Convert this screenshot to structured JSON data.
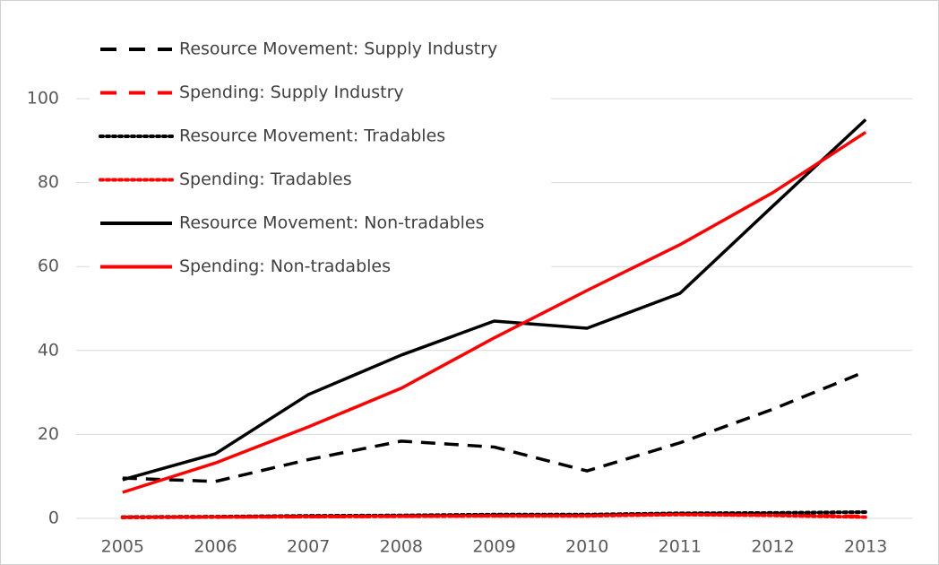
{
  "chart_data": {
    "type": "line",
    "categories": [
      "2005",
      "2006",
      "2007",
      "2008",
      "2009",
      "2010",
      "2011",
      "2012",
      "2013"
    ],
    "series": [
      {
        "name": "Resource Movement: Supply Industry",
        "color": "#000000",
        "style": "dashed",
        "values": [
          9.6,
          8.8,
          14,
          18.4,
          17,
          11.3,
          18,
          26,
          35
        ]
      },
      {
        "name": "Spending:  Supply Industry",
        "color": "#ff0000",
        "style": "dashed",
        "values": [
          0.3,
          0.3,
          0.4,
          0.5,
          0.6,
          0.7,
          1.0,
          0.8,
          0.5
        ]
      },
      {
        "name": "Resource Movement: Tradables",
        "color": "#000000",
        "style": "dotted",
        "values": [
          0.3,
          0.4,
          0.6,
          0.7,
          0.9,
          0.9,
          1.2,
          1.3,
          1.5
        ]
      },
      {
        "name": "Spending:  Tradables",
        "color": "#ff0000",
        "style": "dotted",
        "values": [
          0.2,
          0.3,
          0.4,
          0.5,
          0.6,
          0.6,
          0.9,
          0.7,
          0.3
        ]
      },
      {
        "name": "Resource Movement: Non-tradables",
        "color": "#000000",
        "style": "solid",
        "values": [
          9.2,
          15.4,
          29.5,
          38.9,
          47,
          45.3,
          53.6,
          74.4,
          95
        ]
      },
      {
        "name": "Spending:  Non-tradables",
        "color": "#ff0000",
        "style": "solid",
        "values": [
          6.2,
          13.2,
          21.8,
          31,
          43,
          54.3,
          65.2,
          77.6,
          92
        ]
      }
    ],
    "ylim": [
      0,
      100
    ],
    "yticks": [
      0,
      20,
      40,
      60,
      80,
      100
    ],
    "grid": true,
    "legend": "top-left"
  }
}
